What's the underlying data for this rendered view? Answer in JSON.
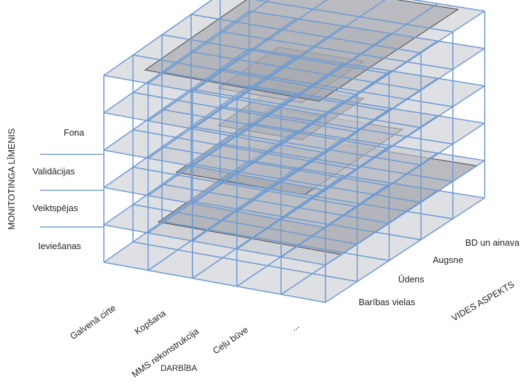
{
  "axes": {
    "vertical_title": "MONITOTINGA LĪMENIS",
    "horizontal_title": "DARBĪBA",
    "depth_title": "VIDES ASPEKTS"
  },
  "levels": [
    "Fona",
    "Validācijas",
    "Veiktspējas",
    "Ieviešanas"
  ],
  "activities": [
    "Galvenā cirte",
    "Kopšana",
    "MMS rekonstrukcija",
    "Ceļu būve",
    "..."
  ],
  "aspects": [
    "Barības vielas",
    "Ūdens",
    "Augsne",
    "BD un ainava"
  ],
  "colors": {
    "grid_line": "#6f9bd1",
    "plane_fill": "#c4c7cd",
    "inner_fill": "#9a9da3",
    "core_fill": "#7e8186",
    "inner_stroke": "#55585d"
  }
}
